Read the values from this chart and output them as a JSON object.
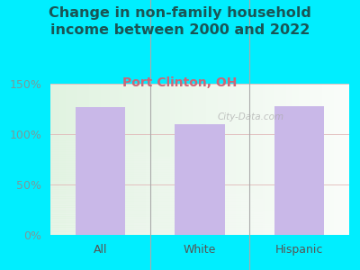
{
  "title": "Change in non-family household\nincome between 2000 and 2022",
  "subtitle": "Port Clinton, OH",
  "categories": [
    "All",
    "White",
    "Hispanic"
  ],
  "values": [
    127,
    110,
    128
  ],
  "bar_color": "#c9b8e8",
  "title_fontsize": 11.5,
  "subtitle_fontsize": 10,
  "subtitle_color": "#cc6677",
  "title_color": "#1a5555",
  "tick_color": "#7a9999",
  "background_outer": "#00eeff",
  "ylim": [
    0,
    150
  ],
  "yticks": [
    0,
    50,
    100,
    150
  ],
  "ytick_labels": [
    "0%",
    "50%",
    "100%",
    "150%"
  ],
  "watermark": "City-Data.com",
  "grid_color": "#e0b8b8"
}
